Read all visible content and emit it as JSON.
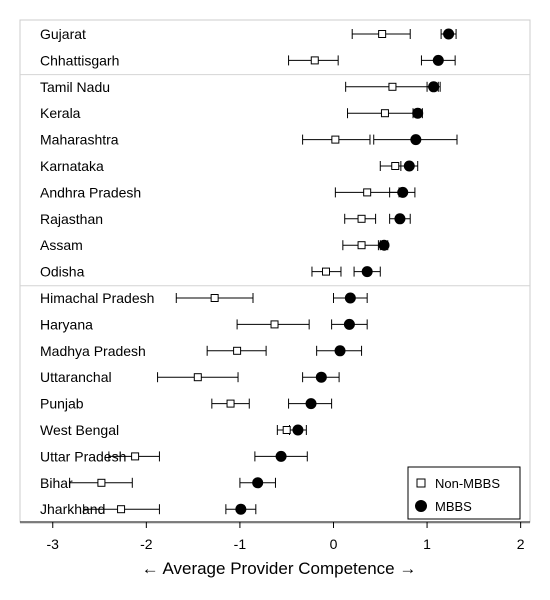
{
  "chart_data": {
    "type": "scatter",
    "subtype": "dot-plot-with-confidence-intervals",
    "xlabel": "← Average Provider Competence →",
    "xlim": [
      -3.35,
      2.1
    ],
    "xticks": [
      -3,
      -2,
      -1,
      0,
      1,
      2
    ],
    "xtick_labels": [
      "-3",
      "-2",
      "-1",
      "0",
      "1",
      "2"
    ],
    "grid": false,
    "legend_position": "bottom-right",
    "group_separators_after": [
      "Chhattisgarh",
      "Odisha",
      "Jharkhand"
    ],
    "categories": [
      "Gujarat",
      "Chhattisgarh",
      "Tamil Nadu",
      "Kerala",
      "Maharashtra",
      "Karnataka",
      "Andhra Pradesh",
      "Rajasthan",
      "Assam",
      "Odisha",
      "Himachal Pradesh",
      "Haryana",
      "Madhya Pradesh",
      "Uttaranchal",
      "Punjab",
      "West Bengal",
      "Uttar Pradesh",
      "Bihar",
      "Jharkhand"
    ],
    "series": [
      {
        "name": "Non-MBBS",
        "marker": "hollow-square",
        "values": [
          0.52,
          -0.2,
          0.63,
          0.55,
          0.02,
          0.66,
          0.36,
          0.3,
          0.3,
          -0.08,
          -1.27,
          -0.63,
          -1.03,
          -1.45,
          -1.1,
          -0.5,
          -2.12,
          -2.48,
          -2.27
        ],
        "ci_low": [
          0.2,
          -0.48,
          0.13,
          0.15,
          -0.33,
          0.5,
          0.02,
          0.12,
          0.1,
          -0.23,
          -1.68,
          -1.03,
          -1.35,
          -1.88,
          -1.3,
          -0.6,
          -2.4,
          -2.82,
          -2.67
        ],
        "ci_high": [
          0.82,
          0.05,
          1.12,
          0.92,
          0.39,
          0.82,
          0.7,
          0.45,
          0.48,
          0.08,
          -0.86,
          -0.26,
          -0.72,
          -1.02,
          -0.9,
          -0.4,
          -1.86,
          -2.15,
          -1.86
        ]
      },
      {
        "name": "MBBS",
        "marker": "filled-circle",
        "values": [
          1.23,
          1.12,
          1.07,
          0.9,
          0.88,
          0.81,
          0.74,
          0.71,
          0.54,
          0.36,
          0.18,
          0.17,
          0.07,
          -0.13,
          -0.24,
          -0.38,
          -0.56,
          -0.81,
          -0.99
        ],
        "ci_low": [
          1.15,
          0.94,
          1.0,
          0.85,
          0.43,
          0.72,
          0.6,
          0.6,
          0.5,
          0.22,
          0.0,
          -0.02,
          -0.18,
          -0.33,
          -0.48,
          -0.47,
          -0.84,
          -1.0,
          -1.15
        ],
        "ci_high": [
          1.31,
          1.3,
          1.14,
          0.95,
          1.32,
          0.9,
          0.87,
          0.82,
          0.58,
          0.5,
          0.36,
          0.36,
          0.3,
          0.06,
          -0.02,
          -0.29,
          -0.28,
          -0.62,
          -0.83
        ]
      }
    ]
  }
}
